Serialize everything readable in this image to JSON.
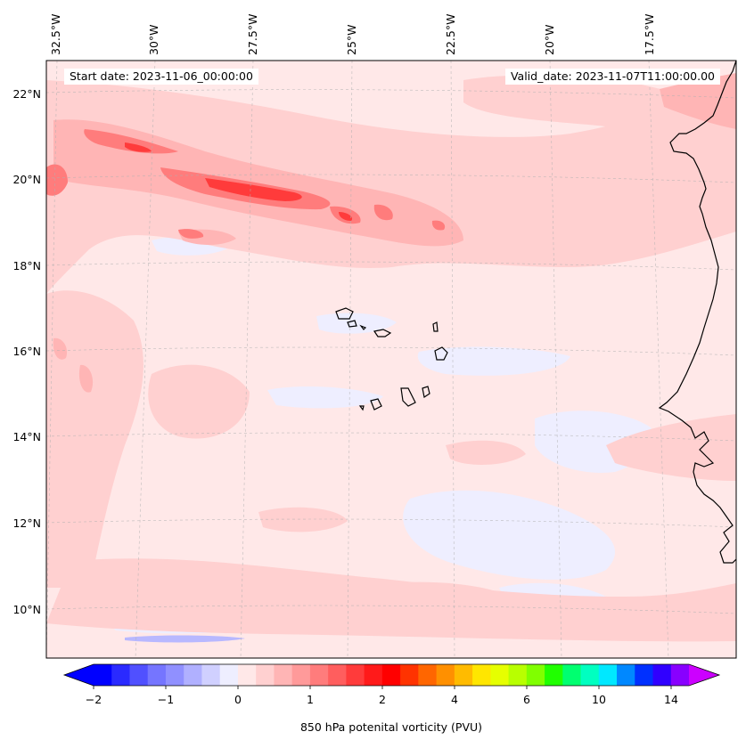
{
  "map": {
    "start_label": "Start date: 2023-11-06_00:00:00",
    "valid_label": "Valid_date: 2023-11-07T11:00:00.00",
    "lon_ticks": [
      "32.5°W",
      "30°W",
      "27.5°W",
      "25°W",
      "22.5°W",
      "20°W",
      "17.5°W"
    ],
    "lat_ticks": [
      "22°N",
      "20°N",
      "18°N",
      "16°N",
      "14°N",
      "12°N",
      "10°N"
    ],
    "region": "Cape Verde Islands and West African coast",
    "field": "850 hPa potential vorticity"
  },
  "colorbar": {
    "label": "850 hPa potenital vorticity (PVU)",
    "tick_labels": [
      "−2",
      "−1",
      "0",
      "1",
      "2",
      "4",
      "6",
      "10",
      "14"
    ],
    "colors": [
      "#0000ff",
      "#2a2aff",
      "#5050ff",
      "#7575ff",
      "#9090ff",
      "#b0b0ff",
      "#d0d0ff",
      "#eeeeff",
      "#ffe8e8",
      "#ffd0d0",
      "#ffb5b5",
      "#ff9a9a",
      "#ff7c7c",
      "#ff5e5e",
      "#ff3b3b",
      "#ff1a1a",
      "#ff0000",
      "#ff3300",
      "#ff6600",
      "#ff9000",
      "#ffbb00",
      "#ffe600",
      "#e6ff00",
      "#b8ff00",
      "#80ff00",
      "#20ff00",
      "#00ff70",
      "#00ffc0",
      "#00e8ff",
      "#0088ff",
      "#0030ff",
      "#3000ff",
      "#8800ff"
    ],
    "under_color": "#0000ff",
    "over_color": "#cc00ff"
  }
}
